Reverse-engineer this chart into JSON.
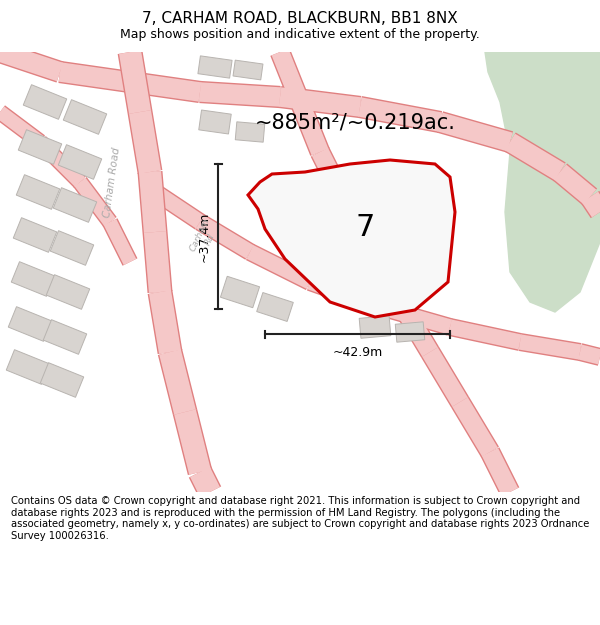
{
  "title": "7, CARHAM ROAD, BLACKBURN, BB1 8NX",
  "subtitle": "Map shows position and indicative extent of the property.",
  "area_label": "~885m²/~0.219ac.",
  "number_label": "7",
  "width_label": "~42.9m",
  "height_label": "~37.4m",
  "footer_text": "Contains OS data © Crown copyright and database right 2021. This information is subject to Crown copyright and database rights 2023 and is reproduced with the permission of HM Land Registry. The polygons (including the associated geometry, namely x, y co-ordinates) are subject to Crown copyright and database rights 2023 Ordnance Survey 100026316.",
  "bg_color": "#ffffff",
  "map_bg": "#eeecec",
  "road_color": "#f5c8c8",
  "road_edge_color": "#e08080",
  "property_fill": "#f8f8f8",
  "property_edge": "#cc0000",
  "green_color": "#ccdec8",
  "building_fill": "#d8d4d0",
  "building_edge": "#b8b4b0",
  "dim_color": "#222222",
  "road_label_color": "#aaaaaa",
  "title_fontsize": 11,
  "subtitle_fontsize": 9,
  "area_fontsize": 15,
  "number_fontsize": 20,
  "dim_fontsize": 9,
  "footer_fontsize": 7.2
}
